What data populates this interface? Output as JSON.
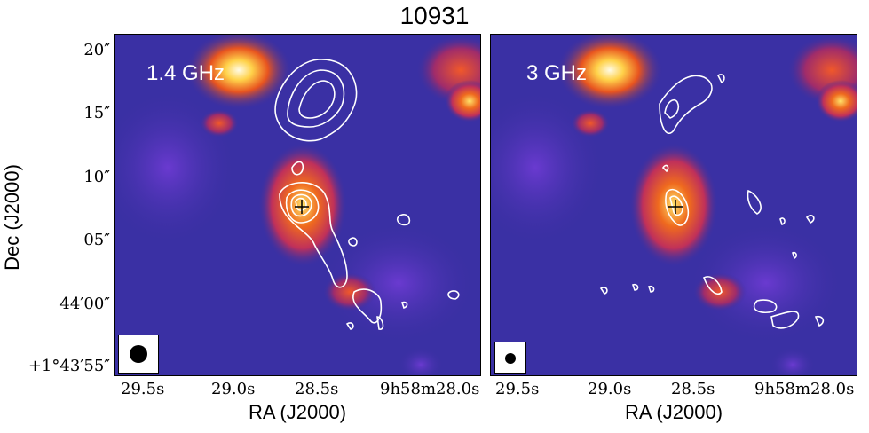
{
  "title": "10931",
  "axes": {
    "xlabel": "RA (J2000)",
    "ylabel": "Dec (J2000)",
    "xticks": [
      "29.5s",
      "29.0s",
      "28.5s",
      "9h58m28.0s"
    ],
    "yticks": [
      "20″",
      "15″",
      "10″",
      "05″",
      "44′00″",
      "+1°43′55″"
    ]
  },
  "panels": [
    {
      "label": "1.4 GHz",
      "beam": "large"
    },
    {
      "label": "3 GHz",
      "beam": "small"
    }
  ],
  "colors": {
    "background": "#3a2fa0",
    "contours": "#ffffff",
    "hot": "#ffd24a"
  }
}
